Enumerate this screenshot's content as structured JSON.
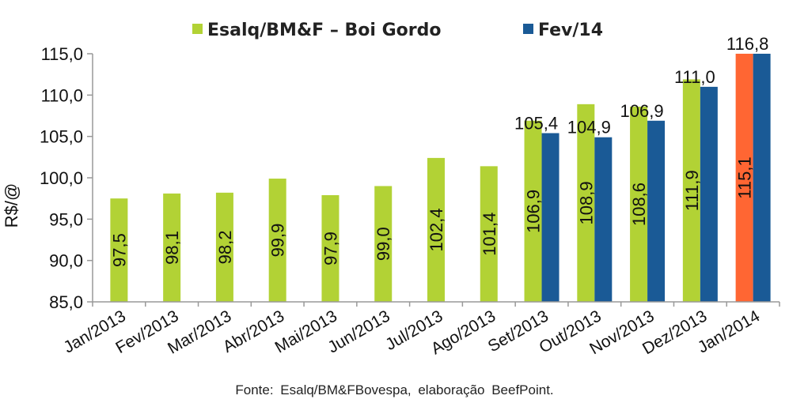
{
  "chart_data": {
    "type": "bar",
    "categories": [
      "Jan/2013",
      "Fev/2013",
      "Mar/2013",
      "Abr/2013",
      "Mai/2013",
      "Jun/2013",
      "Jul/2013",
      "Ago/2013",
      "Set/2013",
      "Out/2013",
      "Nov/2013",
      "Dez/2013",
      "Jan/2014"
    ],
    "series": [
      {
        "name": "Esalq/BM&F – Boi Gordo",
        "color": "#b2d235",
        "values": [
          97.5,
          98.1,
          98.2,
          99.9,
          97.9,
          99.0,
          102.4,
          101.4,
          106.9,
          108.9,
          108.6,
          111.9,
          115.1
        ],
        "labels": [
          "97,5",
          "98,1",
          "98,2",
          "99,9",
          "97,9",
          "99,0",
          "102,4",
          "101,4",
          "106,9",
          "108,9",
          "108,6",
          "111,9",
          "115,1"
        ]
      },
      {
        "name": "Fev/14",
        "color": "#1a5a96",
        "values": [
          null,
          null,
          null,
          null,
          null,
          null,
          null,
          null,
          105.4,
          104.9,
          106.9,
          111.0,
          116.8
        ],
        "labels": [
          null,
          null,
          null,
          null,
          null,
          null,
          null,
          null,
          "105,4",
          "104,9",
          "106,9",
          "111,0",
          "116,8"
        ]
      }
    ],
    "highlight": {
      "category_index": 12,
      "series_index": 0,
      "color": "#ff6633"
    },
    "ylabel": "R$/@",
    "xlabel": "",
    "ylim": [
      85,
      115
    ],
    "yticks": [
      85,
      90,
      95,
      100,
      105,
      110,
      115
    ],
    "ytick_labels": [
      "85,0",
      "90,0",
      "95,0",
      "100,0",
      "105,0",
      "110,0",
      "115,0"
    ],
    "grid": false,
    "legend_position": "top"
  },
  "source_text": "Fonte: Esalq/BM&FBovespa, elaboração BeefPoint."
}
